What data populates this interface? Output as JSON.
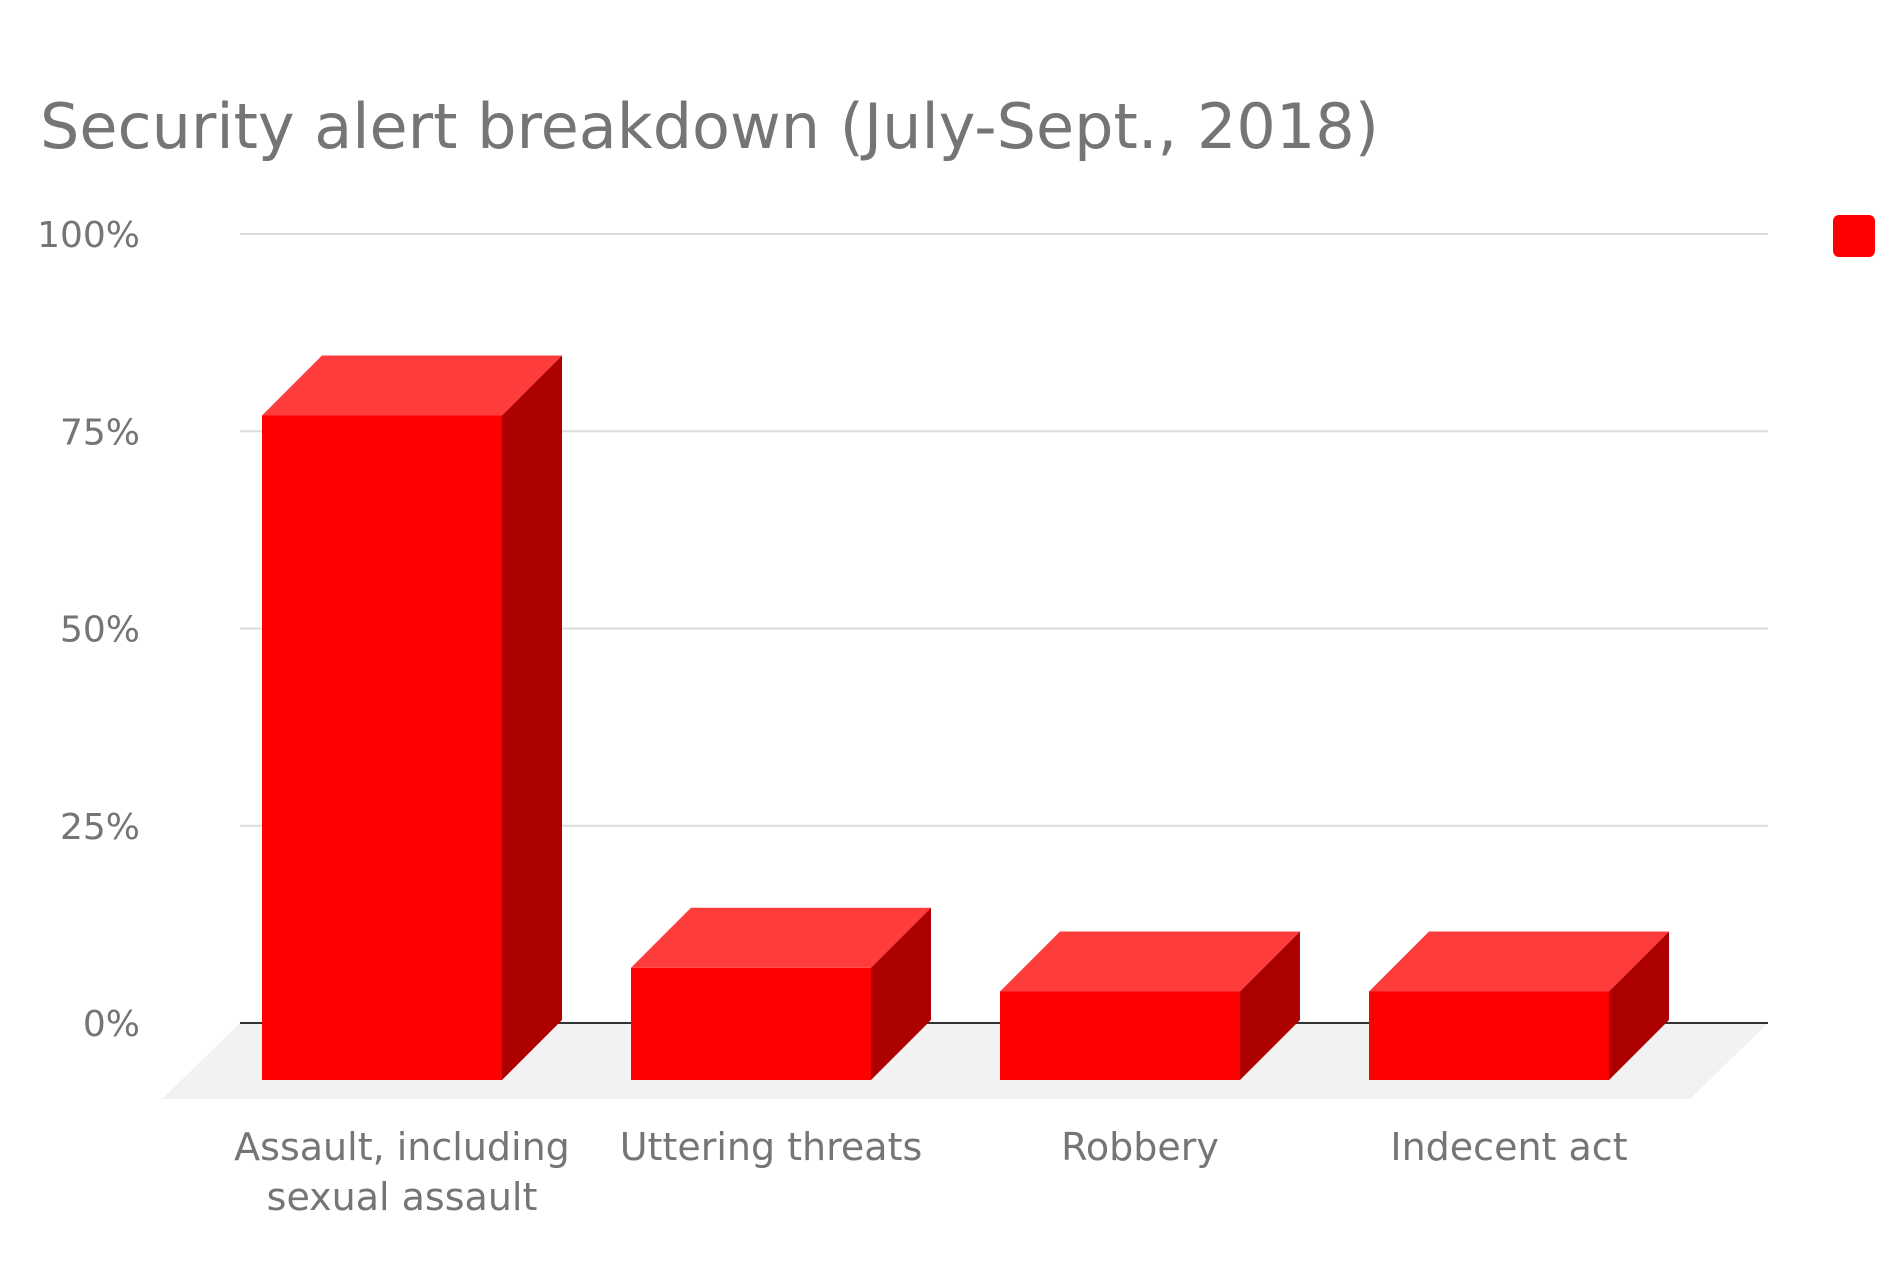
{
  "chart_data": {
    "type": "bar",
    "title": "Security alert breakdown (July-Sept., 2018)",
    "categories": [
      [
        "Assault, including",
        "sexual assault"
      ],
      [
        "Uttering threats"
      ],
      [
        "Robbery"
      ],
      [
        "Indecent act"
      ]
    ],
    "values": [
      77,
      7,
      4,
      4
    ],
    "value_unit": "%",
    "ylim": [
      0,
      100
    ],
    "yticks": [
      "0%",
      "25%",
      "50%",
      "75%",
      "100%"
    ],
    "ytick_values": [
      0,
      25,
      50,
      75,
      100
    ],
    "grid": true,
    "style": "3d",
    "legend": {
      "placement": "top-right"
    },
    "colors": {
      "bar_front": "#ff0000",
      "bar_top": "#ff3c3c",
      "bar_side": "#ad0000",
      "floor": "#f2f2f2"
    }
  }
}
